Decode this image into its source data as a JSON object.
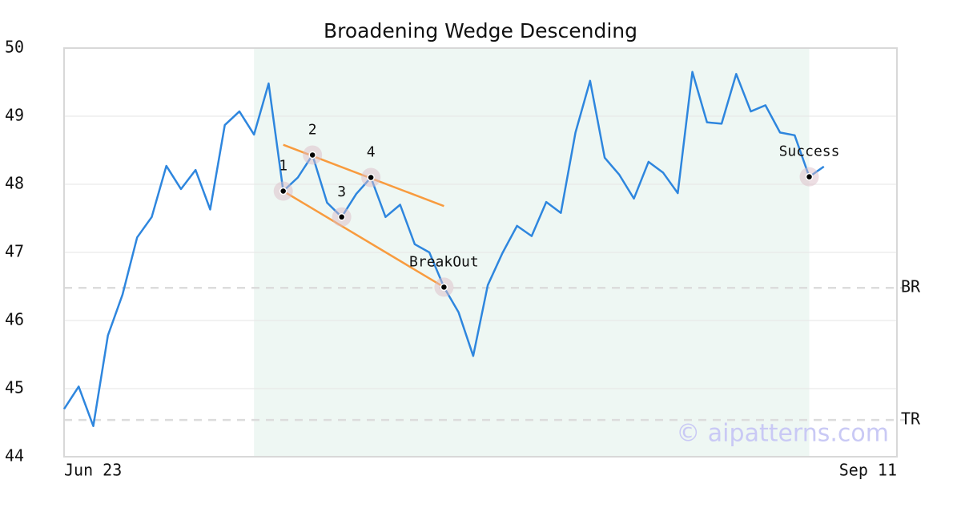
{
  "chart_data": {
    "type": "line",
    "title": "Broadening Wedge Descending",
    "categories": [
      "Jun 23",
      null,
      null,
      null,
      null,
      null,
      null,
      null,
      null,
      null,
      null,
      null,
      null,
      null,
      null,
      null,
      null,
      null,
      null,
      null,
      null,
      null,
      null,
      null,
      null,
      null,
      null,
      null,
      null,
      null,
      null,
      null,
      null,
      null,
      null,
      null,
      null,
      null,
      null,
      null,
      null,
      null,
      null,
      null,
      null,
      null,
      null,
      null,
      null,
      null,
      null,
      null,
      null,
      null,
      null,
      null,
      null,
      "Sep 11"
    ],
    "series": [
      {
        "color": "#2e86de",
        "values": [
          44.7,
          45.03,
          44.45,
          45.78,
          46.38,
          47.22,
          47.52,
          48.27,
          47.93,
          48.21,
          47.63,
          48.87,
          49.07,
          48.73,
          49.48,
          47.9,
          48.1,
          48.43,
          47.73,
          47.52,
          47.86,
          48.1,
          47.52,
          47.7,
          47.12,
          47.0,
          46.49,
          46.12,
          45.48,
          46.52,
          46.99,
          47.39,
          47.24,
          47.74,
          47.58,
          48.76,
          49.52,
          48.39,
          48.14,
          47.79,
          48.33,
          48.17,
          47.87,
          49.65,
          48.91,
          48.89,
          49.62,
          49.07,
          49.16,
          48.76,
          48.72,
          48.11,
          48.26,
          null,
          null,
          null,
          null,
          null
        ]
      }
    ],
    "ylim": [
      44,
      50
    ],
    "yticks": [
      44,
      45,
      46,
      47,
      48,
      49,
      50
    ],
    "grid": true,
    "shade_range": [
      13,
      51
    ],
    "shade_color": "#eef7f3",
    "points": [
      {
        "label": "1",
        "index": 15
      },
      {
        "label": "2",
        "index": 17
      },
      {
        "label": "3",
        "index": 19
      },
      {
        "label": "4",
        "index": 21
      },
      {
        "label": "BreakOut",
        "index": 26
      },
      {
        "label": "Success",
        "index": 51
      }
    ],
    "trendlines": [
      {
        "x": [
          15,
          26
        ],
        "values": [
          48.58,
          47.68
        ],
        "color": "#f89b3e"
      },
      {
        "x": [
          15,
          26
        ],
        "values": [
          47.9,
          46.49
        ],
        "color": "#f89b3e"
      }
    ],
    "hlines": [
      {
        "label": "BR",
        "value": 46.48
      },
      {
        "label": "TR",
        "value": 44.54
      }
    ],
    "watermark": "© aipatterns.com"
  }
}
